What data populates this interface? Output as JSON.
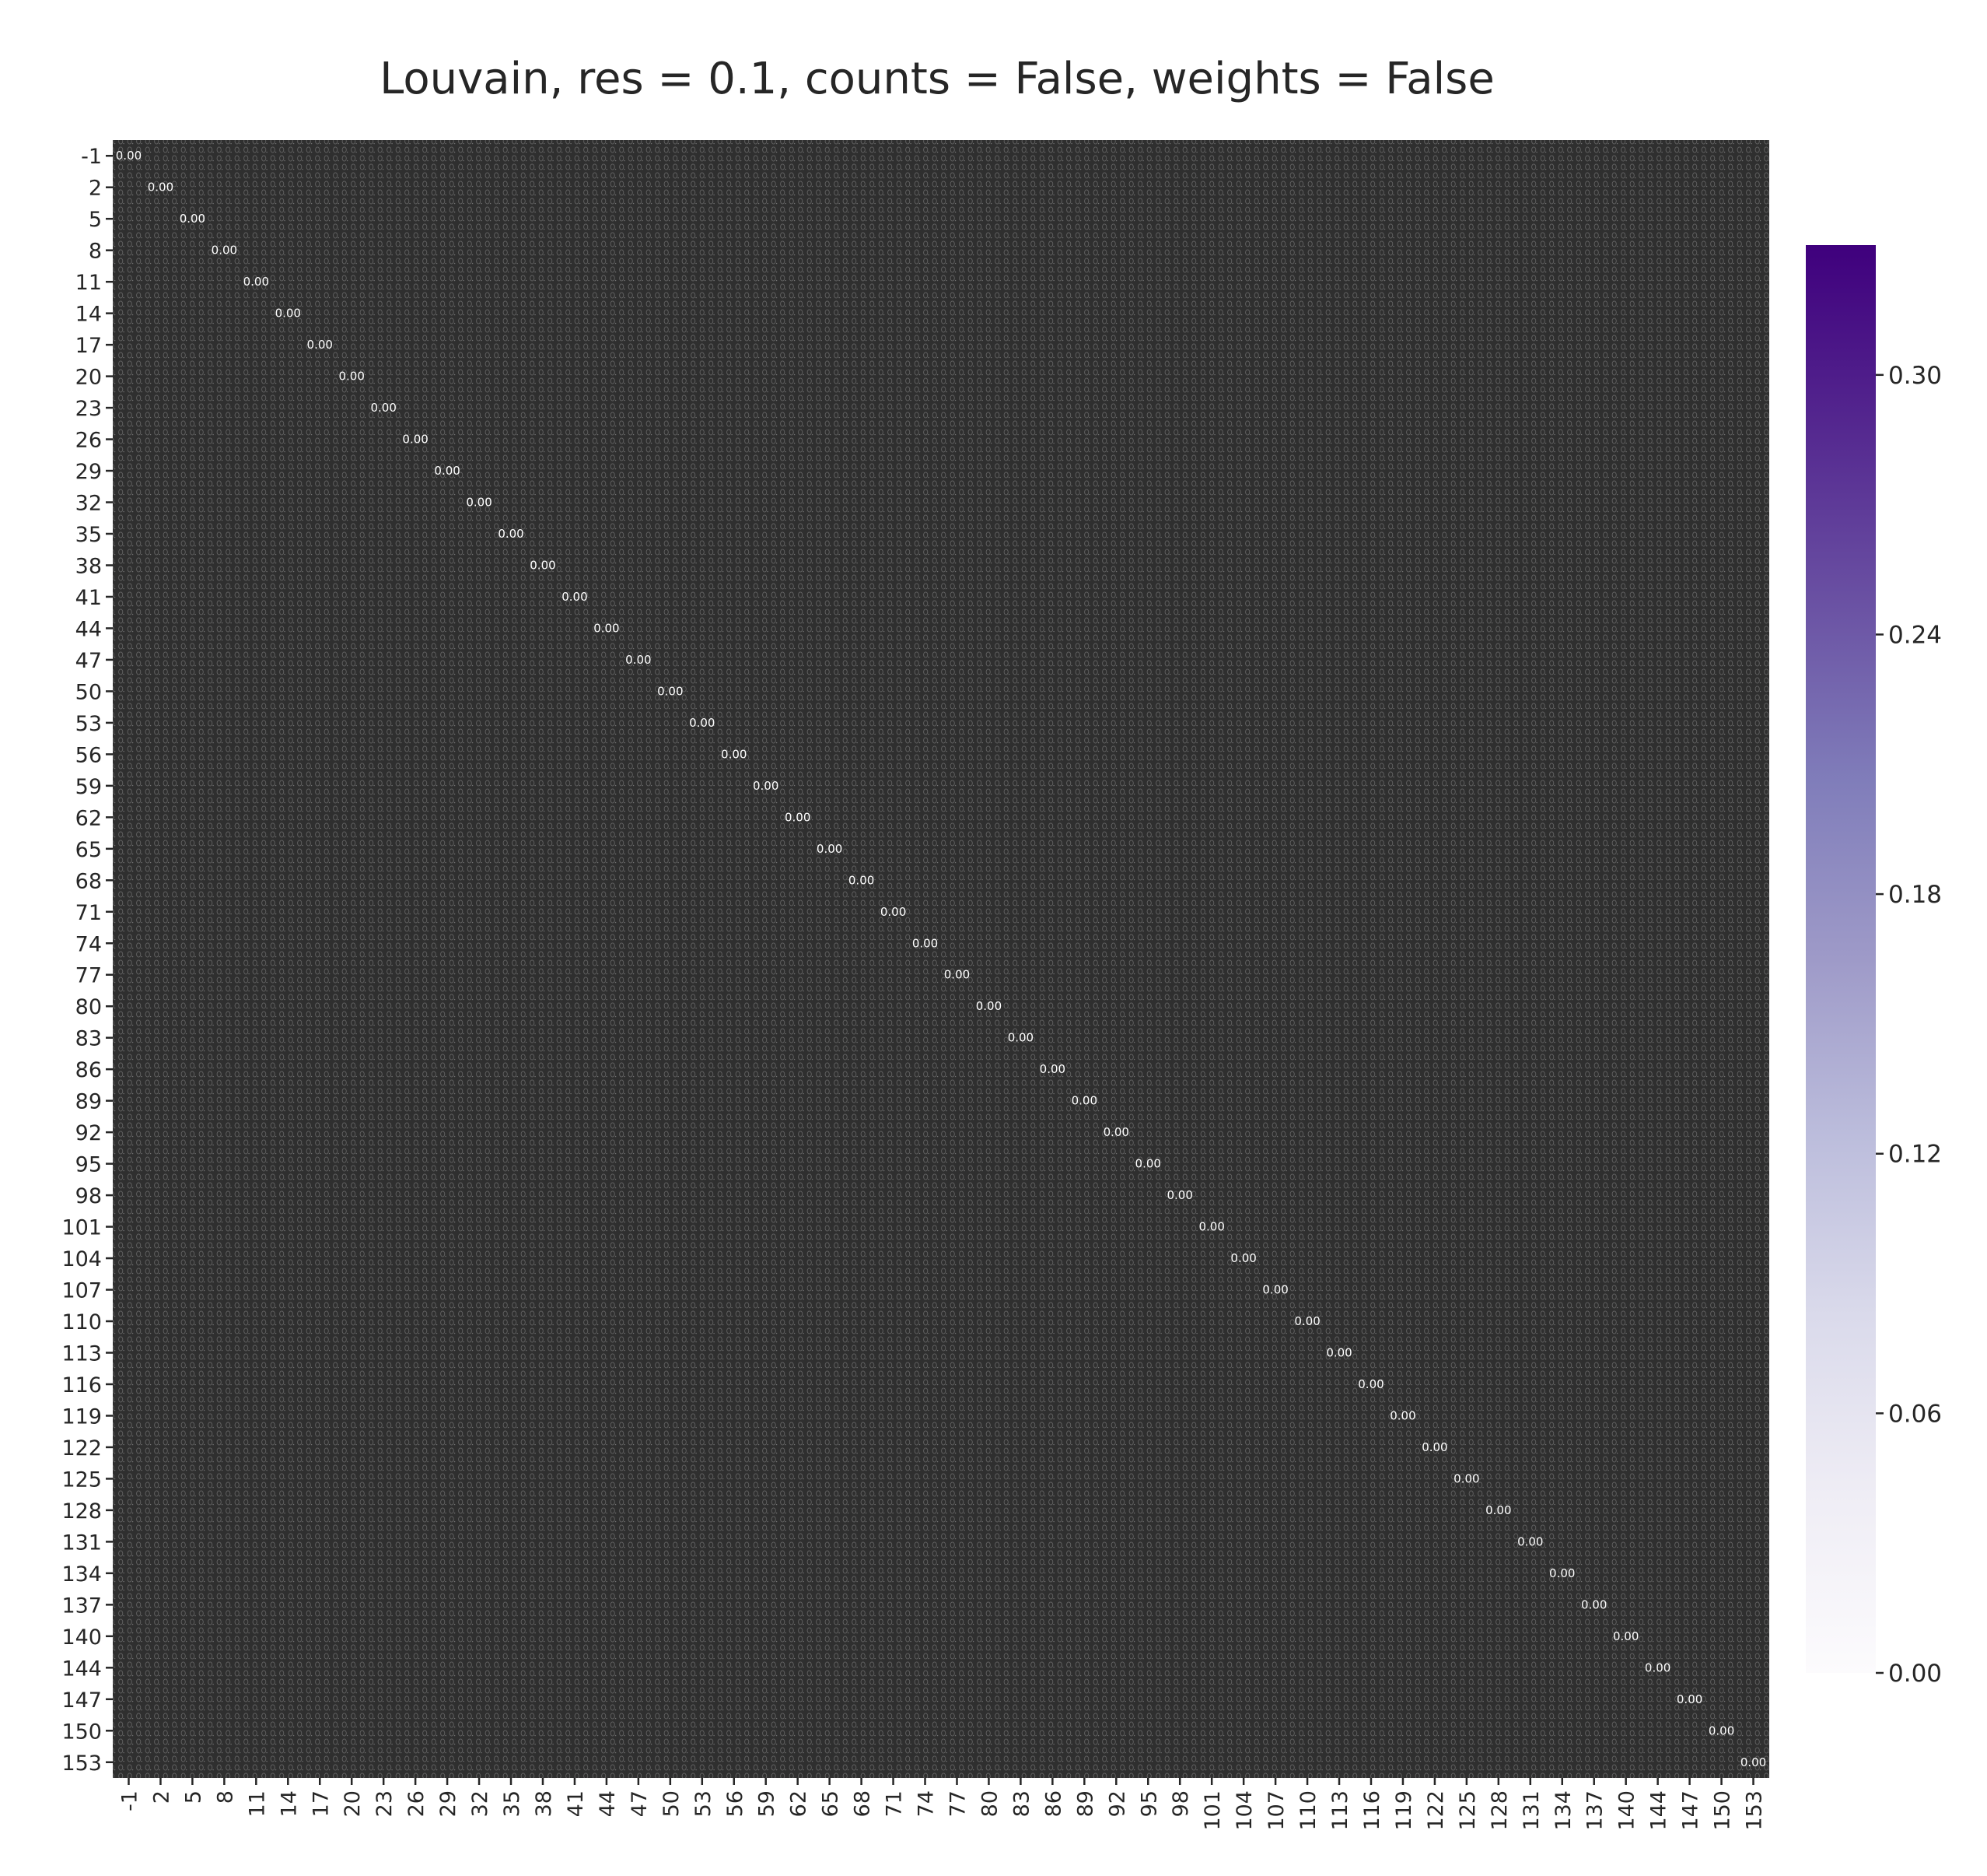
{
  "chart_data": {
    "type": "heatmap",
    "title": "Louvain, res = 0.1, counts = False, weights = False",
    "xlabel": "",
    "ylabel": "",
    "row_labels": [
      "-1",
      "2",
      "5",
      "8",
      "11",
      "14",
      "17",
      "20",
      "23",
      "26",
      "29",
      "32",
      "35",
      "38",
      "41",
      "44",
      "47",
      "50",
      "53",
      "56",
      "59",
      "62",
      "65",
      "68",
      "71",
      "74",
      "77",
      "80",
      "83",
      "86",
      "89",
      "92",
      "95",
      "98",
      "101",
      "104",
      "107",
      "110",
      "113",
      "116",
      "119",
      "122",
      "125",
      "128",
      "131",
      "134",
      "137",
      "140",
      "144",
      "147",
      "150",
      "153"
    ],
    "col_labels": [
      "-1",
      "2",
      "5",
      "8",
      "11",
      "14",
      "17",
      "20",
      "23",
      "26",
      "29",
      "32",
      "35",
      "38",
      "41",
      "44",
      "47",
      "50",
      "53",
      "56",
      "59",
      "62",
      "65",
      "68",
      "71",
      "74",
      "77",
      "80",
      "83",
      "86",
      "89",
      "92",
      "95",
      "98",
      "101",
      "104",
      "107",
      "110",
      "113",
      "116",
      "119",
      "122",
      "125",
      "128",
      "131",
      "134",
      "137",
      "140",
      "144",
      "147",
      "150",
      "153"
    ],
    "cell_annotation_format": "0.00",
    "cell_text_color": "#ffffff",
    "annotation_note": "every cell is annotated; nearly all annotations read 0.00 and overlap into a dense dark texture",
    "colorbar": {
      "cmap": "Purples",
      "vmin": 0.0,
      "vmax": 0.33,
      "ticks": [
        0.0,
        0.06,
        0.12,
        0.18,
        0.24,
        0.3
      ],
      "tick_labels": [
        "0.00",
        "0.06",
        "0.12",
        "0.18",
        "0.24",
        "0.30"
      ],
      "color_low": "#fcfbfd",
      "color_high": "#3f007d"
    },
    "grid": false,
    "legend": "colorbar-right"
  }
}
